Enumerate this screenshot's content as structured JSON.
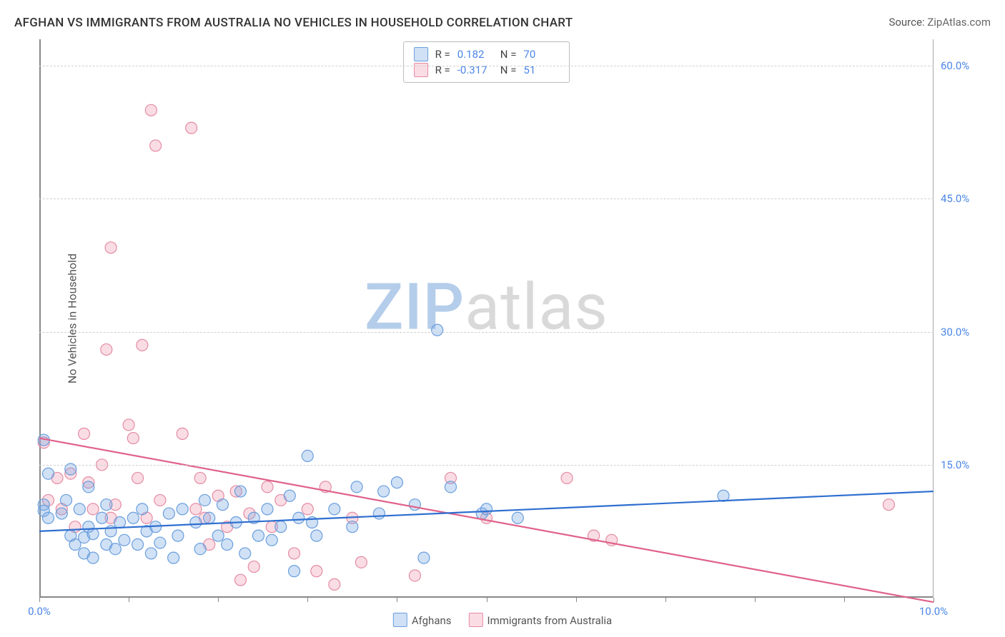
{
  "title": "AFGHAN VS IMMIGRANTS FROM AUSTRALIA NO VEHICLES IN HOUSEHOLD CORRELATION CHART",
  "source_label": "Source:",
  "source_value": "ZipAtlas.com",
  "ylabel": "No Vehicles in Household",
  "watermark": {
    "zip": "ZIP",
    "atlas": "atlas",
    "color_zip": "#b4cdea",
    "color_atlas": "#d9d9d9"
  },
  "chart": {
    "type": "scatter",
    "background_color": "#ffffff",
    "grid_color": "#d0d0d0",
    "grid_dash": "4,4",
    "axis_color": "#888888",
    "xlim": [
      0,
      10
    ],
    "ylim": [
      0,
      63
    ],
    "xtick_positions": [
      0,
      1,
      2,
      3,
      4,
      5,
      6,
      7,
      8,
      9,
      10
    ],
    "xtick_labels_shown": {
      "0": "0.0%",
      "10": "10.0%"
    },
    "ygridlines": [
      15,
      30,
      45,
      60
    ],
    "ytick_labels": {
      "15": "15.0%",
      "30": "30.0%",
      "45": "45.0%",
      "60": "60.0%"
    },
    "marker_radius": 8,
    "marker_stroke_width": 1.2,
    "line_width": 2.2,
    "tick_label_color": "#4a86e8",
    "series": {
      "afghans": {
        "label": "Afghans",
        "fill": "rgba(120,170,230,0.35)",
        "stroke": "#6a9edc",
        "line_color": "#2f6fd0",
        "r_value": "0.182",
        "n_value": "70",
        "regression": {
          "y_at_x0": 7.5,
          "y_at_x10": 12.0
        },
        "points": [
          [
            0.05,
            17.8
          ],
          [
            0.05,
            10.5
          ],
          [
            0.05,
            9.8
          ],
          [
            0.1,
            9.0
          ],
          [
            0.1,
            14.0
          ],
          [
            0.25,
            9.5
          ],
          [
            0.3,
            11.0
          ],
          [
            0.35,
            7.0
          ],
          [
            0.35,
            14.5
          ],
          [
            0.4,
            6.0
          ],
          [
            0.45,
            10.0
          ],
          [
            0.5,
            6.8
          ],
          [
            0.5,
            5.0
          ],
          [
            0.55,
            8.0
          ],
          [
            0.55,
            12.5
          ],
          [
            0.6,
            7.2
          ],
          [
            0.6,
            4.5
          ],
          [
            0.7,
            9.0
          ],
          [
            0.75,
            6.0
          ],
          [
            0.75,
            10.5
          ],
          [
            0.8,
            7.5
          ],
          [
            0.85,
            5.5
          ],
          [
            0.9,
            8.5
          ],
          [
            0.95,
            6.5
          ],
          [
            1.05,
            9.0
          ],
          [
            1.1,
            6.0
          ],
          [
            1.15,
            10.0
          ],
          [
            1.2,
            7.5
          ],
          [
            1.25,
            5.0
          ],
          [
            1.3,
            8.0
          ],
          [
            1.35,
            6.2
          ],
          [
            1.45,
            9.5
          ],
          [
            1.5,
            4.5
          ],
          [
            1.55,
            7.0
          ],
          [
            1.6,
            10.0
          ],
          [
            1.75,
            8.5
          ],
          [
            1.8,
            5.5
          ],
          [
            1.85,
            11.0
          ],
          [
            1.9,
            9.0
          ],
          [
            2.0,
            7.0
          ],
          [
            2.05,
            10.5
          ],
          [
            2.1,
            6.0
          ],
          [
            2.2,
            8.5
          ],
          [
            2.25,
            12.0
          ],
          [
            2.3,
            5.0
          ],
          [
            2.4,
            9.0
          ],
          [
            2.45,
            7.0
          ],
          [
            2.55,
            10.0
          ],
          [
            2.6,
            6.5
          ],
          [
            2.7,
            8.0
          ],
          [
            2.8,
            11.5
          ],
          [
            2.9,
            9.0
          ],
          [
            3.0,
            16.0
          ],
          [
            3.05,
            8.5
          ],
          [
            3.1,
            7.0
          ],
          [
            3.3,
            10.0
          ],
          [
            3.5,
            8.0
          ],
          [
            3.55,
            12.5
          ],
          [
            3.8,
            9.5
          ],
          [
            3.85,
            12.0
          ],
          [
            4.0,
            13.0
          ],
          [
            4.2,
            10.5
          ],
          [
            4.3,
            4.5
          ],
          [
            4.45,
            30.2
          ],
          [
            4.6,
            12.5
          ],
          [
            4.95,
            9.5
          ],
          [
            5.0,
            10.0
          ],
          [
            5.35,
            9.0
          ],
          [
            7.65,
            11.5
          ],
          [
            2.85,
            3.0
          ]
        ]
      },
      "aus": {
        "label": "Immigrants from Australia",
        "fill": "rgba(240,150,170,0.32)",
        "stroke": "#e48ba3",
        "line_color": "#e0628a",
        "r_value": "-0.317",
        "n_value": "51",
        "regression": {
          "y_at_x0": 18.0,
          "y_at_x10": -0.5
        },
        "points": [
          [
            0.05,
            17.5
          ],
          [
            0.1,
            11.0
          ],
          [
            0.2,
            13.5
          ],
          [
            0.25,
            10.0
          ],
          [
            0.35,
            14.0
          ],
          [
            0.4,
            8.0
          ],
          [
            0.5,
            18.5
          ],
          [
            0.55,
            13.0
          ],
          [
            0.6,
            10.0
          ],
          [
            0.7,
            15.0
          ],
          [
            0.75,
            28.0
          ],
          [
            0.8,
            9.0
          ],
          [
            0.8,
            39.5
          ],
          [
            0.85,
            10.5
          ],
          [
            1.0,
            19.5
          ],
          [
            1.05,
            18.0
          ],
          [
            1.1,
            13.5
          ],
          [
            1.15,
            28.5
          ],
          [
            1.2,
            9.0
          ],
          [
            1.25,
            55.0
          ],
          [
            1.3,
            51.0
          ],
          [
            1.35,
            11.0
          ],
          [
            1.6,
            18.5
          ],
          [
            1.7,
            53.0
          ],
          [
            1.75,
            10.0
          ],
          [
            1.8,
            13.5
          ],
          [
            1.85,
            9.0
          ],
          [
            1.9,
            6.0
          ],
          [
            2.0,
            11.5
          ],
          [
            2.1,
            8.0
          ],
          [
            2.2,
            12.0
          ],
          [
            2.25,
            2.0
          ],
          [
            2.35,
            9.5
          ],
          [
            2.4,
            3.5
          ],
          [
            2.55,
            12.5
          ],
          [
            2.6,
            8.0
          ],
          [
            2.7,
            11.0
          ],
          [
            2.85,
            5.0
          ],
          [
            3.0,
            10.0
          ],
          [
            3.1,
            3.0
          ],
          [
            3.2,
            12.5
          ],
          [
            3.3,
            1.5
          ],
          [
            3.5,
            9.0
          ],
          [
            3.6,
            4.0
          ],
          [
            4.2,
            2.5
          ],
          [
            4.6,
            13.5
          ],
          [
            5.0,
            9.0
          ],
          [
            5.9,
            13.5
          ],
          [
            6.2,
            7.0
          ],
          [
            6.4,
            6.5
          ],
          [
            9.5,
            10.5
          ]
        ]
      }
    }
  },
  "legend_top": {
    "r_label": "R =",
    "n_label": "N ="
  }
}
